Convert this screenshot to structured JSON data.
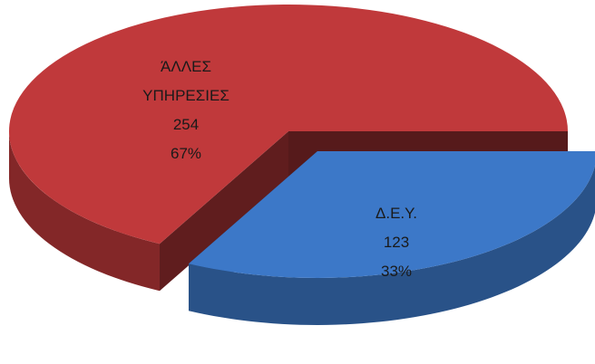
{
  "chart_data": {
    "type": "pie3d",
    "categories": [
      "ΆΛΛΕΣ ΥΠΗΡΕΣΙΕΣ",
      "Δ.Ε.Υ."
    ],
    "values": [
      254,
      123
    ],
    "percent_labels": [
      "67%",
      "33%"
    ],
    "colors": [
      "#c0393b",
      "#3c78c8"
    ]
  }
}
